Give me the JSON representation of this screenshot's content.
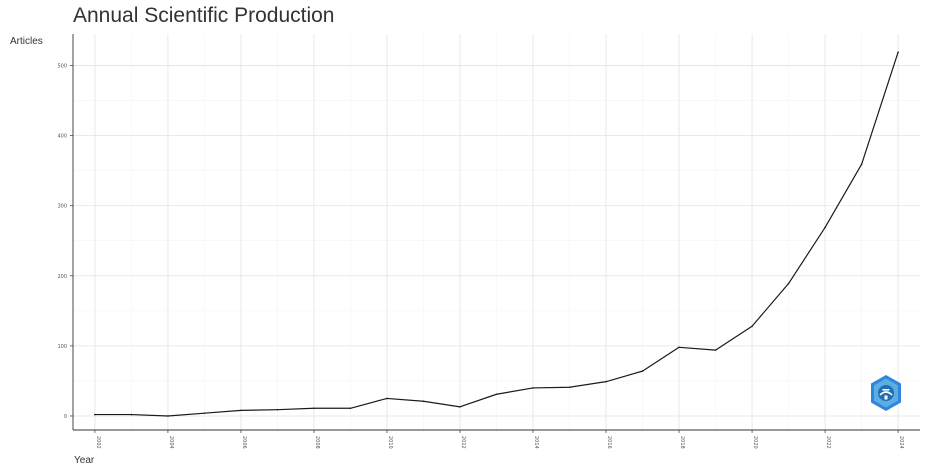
{
  "chart_data": {
    "type": "line",
    "title": "Annual Scientific Production",
    "xlabel": "Year",
    "ylabel": "Articles",
    "x": [
      2002,
      2003,
      2004,
      2005,
      2006,
      2007,
      2008,
      2009,
      2010,
      2011,
      2012,
      2013,
      2014,
      2015,
      2016,
      2017,
      2018,
      2019,
      2020,
      2021,
      2022,
      2023,
      2024
    ],
    "series": [
      {
        "name": "",
        "values": [
          2,
          2,
          0,
          4,
          8,
          9,
          11,
          11,
          25,
          21,
          13,
          31,
          40,
          41,
          49,
          64,
          98,
          94,
          128,
          189,
          269,
          359,
          519
        ]
      }
    ],
    "x_ticks": [
      "2002",
      "2004",
      "2006",
      "2008",
      "2010",
      "2012",
      "2014",
      "2016",
      "2018",
      "2020",
      "2022",
      "2024"
    ],
    "y_ticks": [
      "0",
      "100",
      "200",
      "300",
      "400",
      "500"
    ],
    "xlim": [
      2001.4,
      2024.6
    ],
    "ylim": [
      -20,
      545
    ],
    "grid": true,
    "line_color": "#1a1a1a",
    "legend": "none"
  },
  "logo": {
    "icon": "bibliometrix-logo-icon",
    "color": "#2e86de"
  }
}
